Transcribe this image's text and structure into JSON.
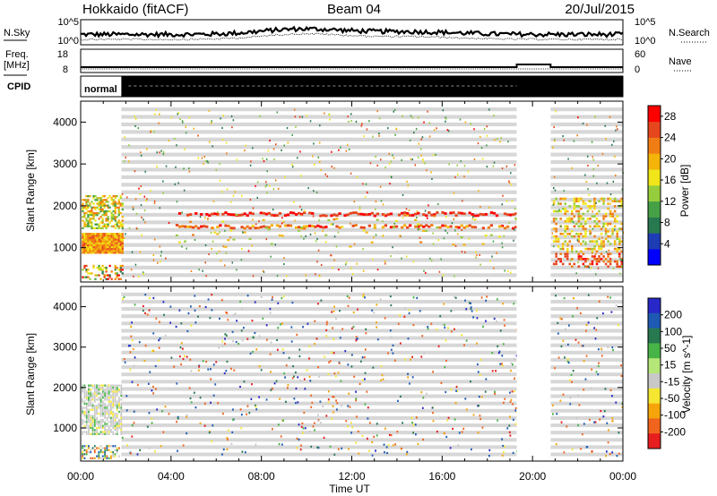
{
  "header": {
    "station": "Hokkaido (fitACF)",
    "beam": "Beam 04",
    "date": "20/Jul/2015"
  },
  "strip": {
    "nsky_label": "N.Sky",
    "nsky_ticks": [
      "10^5",
      "10^0"
    ],
    "nsearch_label": "N.Search",
    "nsearch_ticks": [
      "10^5",
      "10^0"
    ],
    "freq_label_1": "Freq.",
    "freq_label_2": "[MHz]",
    "freq_ticks": [
      "18",
      "8"
    ],
    "nave_label": "Nave",
    "nave_ticks": [
      "60",
      "0"
    ],
    "cpid_label": "CPID",
    "cpid_mode": "normal"
  },
  "chart_data": [
    {
      "type": "heatmap",
      "name": "power",
      "ylabel": "Slant Range [km]",
      "yticks": [
        "1000",
        "2000",
        "3000",
        "4000"
      ],
      "ylim": [
        180,
        4500
      ],
      "xlim_hours": [
        0,
        24
      ],
      "colorbar_label": "Power [dB]",
      "colorbar_ticks": [
        "4",
        "8",
        "12",
        "16",
        "20",
        "24",
        "28"
      ],
      "colorbar_range": [
        0,
        30
      ],
      "colors": [
        "#0000ff",
        "#1e3cb4",
        "#287850",
        "#46a046",
        "#96cd3c",
        "#f0e619",
        "#f5b40a",
        "#f07d14",
        "#e6461e",
        "#ff0000"
      ],
      "data_gap_hours": [
        19.3,
        20.8
      ],
      "sparse_start_hour": 1.8,
      "bands_km": [
        {
          "label": "900-1300 (00-02 UT)",
          "value_db": 20
        },
        {
          "label": "1500-1800 (00-02 UT)",
          "value_db": 18
        },
        {
          "label": "1750-1850 (04-19 UT)",
          "value_db": 26
        },
        {
          "label": "1450-1650 (04-19 UT)",
          "value_db": 24
        },
        {
          "label": "900-1200 (21-24 UT)",
          "value_db": 20
        },
        {
          "label": "600-800 (22-24 UT)",
          "value_db": 26
        }
      ]
    },
    {
      "type": "heatmap",
      "name": "velocity",
      "ylabel": "Slant Range [km]",
      "yticks": [
        "1000",
        "2000",
        "3000",
        "4000"
      ],
      "ylim": [
        180,
        4500
      ],
      "xlim_hours": [
        0,
        24
      ],
      "xticks": [
        "00:00",
        "04:00",
        "08:00",
        "12:00",
        "16:00",
        "20:00",
        "00:00"
      ],
      "xlabel": "Time UT",
      "colorbar_label": "Velocity [m s^-1]",
      "colorbar_ticks": [
        "200",
        "100",
        "50",
        "15",
        "-15",
        "-50",
        "-100",
        "-200"
      ],
      "colorbar_range": [
        -250,
        250
      ],
      "colors": [
        "#2828c8",
        "#1e5ab4",
        "#287850",
        "#46b446",
        "#b4e678",
        "#c8c8c8",
        "#f5e632",
        "#f5a50a",
        "#f0641e",
        "#e61e1e"
      ],
      "data_gap_hours": [
        19.3,
        20.8
      ],
      "sparse_start_hour": 1.8
    }
  ]
}
